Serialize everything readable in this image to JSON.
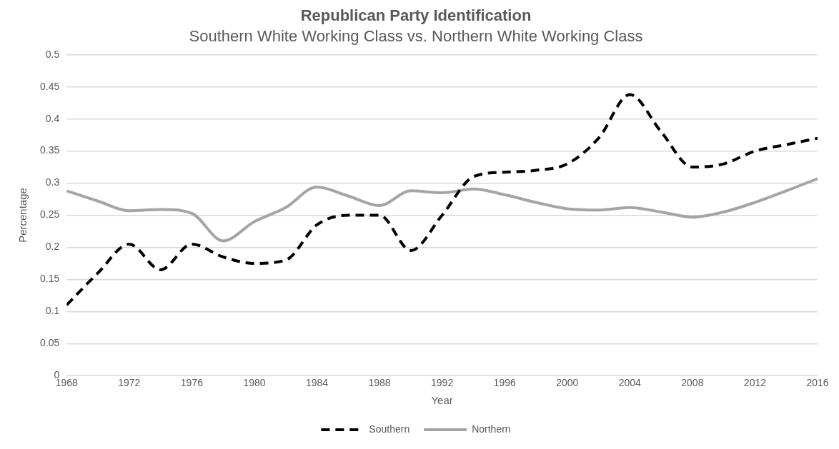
{
  "chart_data": {
    "type": "line",
    "title": "Republican Party Identification",
    "subtitle": "Southern White Working Class vs. Northern White Working Class",
    "xlabel": "Year",
    "ylabel": "Percentage",
    "x": [
      1968,
      1970,
      1972,
      1974,
      1976,
      1978,
      1980,
      1982,
      1984,
      1986,
      1988,
      1990,
      1992,
      1994,
      1996,
      1998,
      2000,
      2002,
      2004,
      2006,
      2008,
      2010,
      2012,
      2014,
      2016
    ],
    "xlim": [
      1968,
      2016
    ],
    "xticks": [
      1968,
      1972,
      1976,
      1980,
      1984,
      1988,
      1992,
      1996,
      2000,
      2004,
      2008,
      2012,
      2016
    ],
    "ylim": [
      0,
      0.5
    ],
    "yticks": [
      0,
      0.05,
      0.1,
      0.15,
      0.2,
      0.25,
      0.3,
      0.35,
      0.4,
      0.45,
      0.5
    ],
    "grid": "y",
    "legend": "bottom",
    "marker": "none",
    "series": [
      {
        "name": "Southern",
        "color": "#000000",
        "line_style": "dashed",
        "values": [
          0.11,
          0.16,
          0.205,
          0.165,
          0.205,
          0.185,
          0.175,
          0.18,
          0.235,
          0.25,
          0.25,
          0.195,
          0.25,
          0.31,
          0.317,
          0.32,
          0.33,
          0.37,
          0.438,
          0.38,
          0.325,
          0.33,
          0.35,
          0.36,
          0.37
        ]
      },
      {
        "name": "Northern",
        "color": "#a5a5a5",
        "line_style": "solid",
        "values": [
          0.288,
          0.272,
          0.257,
          0.259,
          0.253,
          0.21,
          0.24,
          0.262,
          0.294,
          0.28,
          0.265,
          0.288,
          0.285,
          0.291,
          0.282,
          0.27,
          0.26,
          0.258,
          0.262,
          0.255,
          0.247,
          0.255,
          0.27,
          0.288,
          0.307
        ]
      }
    ]
  }
}
